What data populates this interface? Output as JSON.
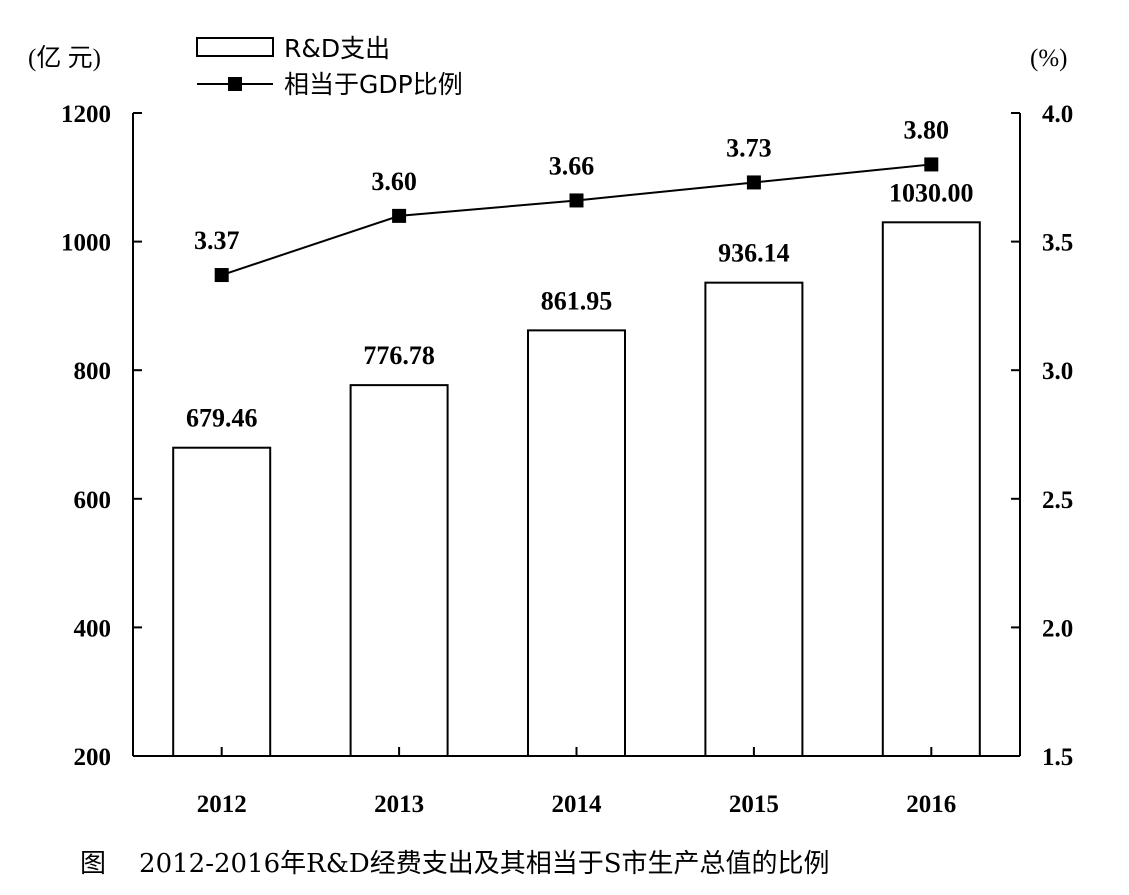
{
  "chart_data": {
    "type": "bar",
    "categories": [
      "2012",
      "2013",
      "2014",
      "2015",
      "2016"
    ],
    "series": [
      {
        "name": "R&D支出",
        "type": "bar",
        "axis": "left",
        "values": [
          679.46,
          776.78,
          861.95,
          936.14,
          1030.0
        ],
        "labels": [
          "679.46",
          "776.78",
          "861.95",
          "936.14",
          "1030.00"
        ]
      },
      {
        "name": "相当于GDP比例",
        "type": "line",
        "axis": "right",
        "marker": "square",
        "values": [
          3.37,
          3.6,
          3.66,
          3.73,
          3.8
        ],
        "labels": [
          "3.37",
          "3.60",
          "3.66",
          "3.73",
          "3.80"
        ]
      }
    ],
    "y_left": {
      "unit_label": "(亿  元)",
      "range": [
        200,
        1200
      ],
      "ticks": [
        "200",
        "400",
        "600",
        "800",
        "1000",
        "1200"
      ]
    },
    "y_right": {
      "unit_label": "(%)",
      "range": [
        1.5,
        4.0
      ],
      "ticks": [
        "1.5",
        "2.0",
        "2.5",
        "3.0",
        "3.5",
        "4.0"
      ]
    },
    "caption": "图    2012-2016年R&D经费支出及其相当于S市生产总值的比例",
    "legend_position": "top-left",
    "grid": false
  }
}
